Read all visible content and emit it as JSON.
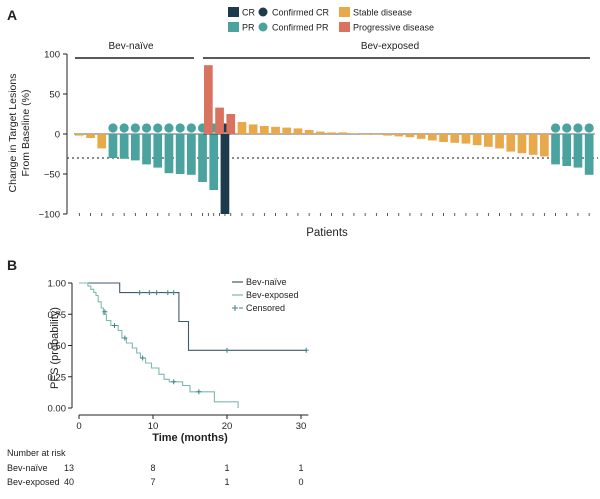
{
  "panels": {
    "a_label": "A",
    "b_label": "B"
  },
  "colors": {
    "cr": "#1d3b4d",
    "pr": "#4aa39e",
    "confirmed_cr": "#1d3b4d",
    "confirmed_pr": "#4aa39e",
    "stable": "#e8a94a",
    "progressive": "#d9735f",
    "bev_naive_line": "#3f5a6b",
    "bev_exposed_line": "#7fb8b0",
    "censored": "#3f7f86"
  },
  "chart_data": [
    {
      "type": "bar",
      "title": "",
      "xlabel": "Patients",
      "ylabel": "Change in Target Lesions From Baseline (%)",
      "ylim": [
        -100,
        100
      ],
      "yticks": [
        "100",
        "50",
        "0",
        "−50",
        "−100"
      ],
      "ytick_values": [
        100,
        50,
        0,
        -50,
        -100
      ],
      "threshold": -30,
      "legend": [
        {
          "key": "cr",
          "label": "CR",
          "marker": "square"
        },
        {
          "key": "confirmed_cr",
          "label": "Confirmed CR",
          "marker": "circle"
        },
        {
          "key": "stable",
          "label": "Stable disease",
          "marker": "square"
        },
        {
          "key": "pr",
          "label": "PR",
          "marker": "square"
        },
        {
          "key": "confirmed_pr",
          "label": "Confirmed PR",
          "marker": "circle"
        },
        {
          "key": "progressive",
          "label": "Progressive disease",
          "marker": "square"
        }
      ],
      "groups": [
        {
          "name": "Bev-naïve",
          "bars": [
            {
              "value": -2,
              "response": "stable",
              "confirmed": false
            },
            {
              "value": -5,
              "response": "stable",
              "confirmed": false
            },
            {
              "value": -18,
              "response": "stable",
              "confirmed": false
            },
            {
              "value": -30,
              "response": "pr",
              "confirmed": true
            },
            {
              "value": -31,
              "response": "pr",
              "confirmed": true
            },
            {
              "value": -33,
              "response": "pr",
              "confirmed": true
            },
            {
              "value": -38,
              "response": "pr",
              "confirmed": true
            },
            {
              "value": -42,
              "response": "pr",
              "confirmed": true
            },
            {
              "value": -49,
              "response": "pr",
              "confirmed": true
            },
            {
              "value": -50,
              "response": "pr",
              "confirmed": true
            },
            {
              "value": -51,
              "response": "pr",
              "confirmed": true
            },
            {
              "value": -60,
              "response": "pr",
              "confirmed": true
            },
            {
              "value": -70,
              "response": "pr",
              "confirmed": true
            },
            {
              "value": -100,
              "response": "cr",
              "confirmed": true
            }
          ]
        },
        {
          "name": "Bev-exposed",
          "bars": [
            {
              "value": 86,
              "response": "progressive",
              "confirmed": false
            },
            {
              "value": 33,
              "response": "progressive",
              "confirmed": false
            },
            {
              "value": 25,
              "response": "progressive",
              "confirmed": false
            },
            {
              "value": 15,
              "response": "stable",
              "confirmed": false
            },
            {
              "value": 12,
              "response": "stable",
              "confirmed": false
            },
            {
              "value": 10,
              "response": "stable",
              "confirmed": false
            },
            {
              "value": 9,
              "response": "stable",
              "confirmed": false
            },
            {
              "value": 8,
              "response": "stable",
              "confirmed": false
            },
            {
              "value": 7,
              "response": "stable",
              "confirmed": false
            },
            {
              "value": 5,
              "response": "stable",
              "confirmed": false
            },
            {
              "value": 3,
              "response": "stable",
              "confirmed": false
            },
            {
              "value": 2,
              "response": "stable",
              "confirmed": false
            },
            {
              "value": 2,
              "response": "stable",
              "confirmed": false
            },
            {
              "value": 1,
              "response": "stable",
              "confirmed": false
            },
            {
              "value": -1,
              "response": "stable",
              "confirmed": false
            },
            {
              "value": -1,
              "response": "stable",
              "confirmed": false
            },
            {
              "value": -2,
              "response": "stable",
              "confirmed": false
            },
            {
              "value": -3,
              "response": "stable",
              "confirmed": false
            },
            {
              "value": -4,
              "response": "stable",
              "confirmed": false
            },
            {
              "value": -6,
              "response": "stable",
              "confirmed": false
            },
            {
              "value": -8,
              "response": "stable",
              "confirmed": false
            },
            {
              "value": -10,
              "response": "stable",
              "confirmed": false
            },
            {
              "value": -11,
              "response": "stable",
              "confirmed": false
            },
            {
              "value": -12,
              "response": "stable",
              "confirmed": false
            },
            {
              "value": -14,
              "response": "stable",
              "confirmed": false
            },
            {
              "value": -16,
              "response": "stable",
              "confirmed": false
            },
            {
              "value": -18,
              "response": "stable",
              "confirmed": false
            },
            {
              "value": -22,
              "response": "stable",
              "confirmed": false
            },
            {
              "value": -24,
              "response": "stable",
              "confirmed": false
            },
            {
              "value": -26,
              "response": "stable",
              "confirmed": false
            },
            {
              "value": -28,
              "response": "stable",
              "confirmed": false
            },
            {
              "value": -38,
              "response": "pr",
              "confirmed": true
            },
            {
              "value": -40,
              "response": "pr",
              "confirmed": true
            },
            {
              "value": -42,
              "response": "pr",
              "confirmed": true
            },
            {
              "value": -51,
              "response": "pr",
              "confirmed": true
            }
          ]
        }
      ]
    },
    {
      "type": "line",
      "title": "",
      "xlabel": "Time (months)",
      "ylabel": "PFS (probability)",
      "xlim": [
        0,
        31
      ],
      "ylim": [
        0,
        1
      ],
      "xticks": [
        "0",
        "10",
        "20",
        "30"
      ],
      "xtick_values": [
        0,
        10,
        20,
        30
      ],
      "yticks": [
        "1.00",
        "0.75",
        "0.50",
        "0.25",
        "0.00"
      ],
      "ytick_values": [
        1.0,
        0.75,
        0.5,
        0.25,
        0.0
      ],
      "legend": [
        {
          "key": "bev_naive_line",
          "label": "Bev-naïve",
          "marker": "line"
        },
        {
          "key": "bev_exposed_line",
          "label": "Bev-exposed",
          "marker": "line"
        },
        {
          "key": "censored",
          "label": "Censored",
          "marker": "plus"
        }
      ],
      "series": [
        {
          "name": "Bev-naïve",
          "steps": [
            [
              0,
              1.0
            ],
            [
              5.5,
              1.0
            ],
            [
              5.5,
              0.923
            ],
            [
              13.5,
              0.923
            ],
            [
              13.5,
              0.692
            ],
            [
              14.8,
              0.692
            ],
            [
              14.8,
              0.462
            ],
            [
              30.7,
              0.462
            ]
          ],
          "censored": [
            [
              8.2,
              0.923
            ],
            [
              9.5,
              0.923
            ],
            [
              10.5,
              0.923
            ],
            [
              12,
              0.923
            ],
            [
              12.8,
              0.923
            ],
            [
              20,
              0.462
            ],
            [
              30.7,
              0.462
            ]
          ]
        },
        {
          "name": "Bev-exposed",
          "steps": [
            [
              0,
              1.0
            ],
            [
              1.2,
              1.0
            ],
            [
              1.2,
              0.975
            ],
            [
              1.6,
              0.975
            ],
            [
              1.6,
              0.95
            ],
            [
              2.0,
              0.95
            ],
            [
              2.0,
              0.925
            ],
            [
              2.3,
              0.925
            ],
            [
              2.3,
              0.9
            ],
            [
              2.6,
              0.9
            ],
            [
              2.6,
              0.85
            ],
            [
              3.0,
              0.85
            ],
            [
              3.0,
              0.8
            ],
            [
              3.3,
              0.8
            ],
            [
              3.3,
              0.75
            ],
            [
              3.7,
              0.75
            ],
            [
              3.7,
              0.7
            ],
            [
              4.3,
              0.7
            ],
            [
              4.3,
              0.66
            ],
            [
              5.3,
              0.66
            ],
            [
              5.3,
              0.62
            ],
            [
              5.8,
              0.62
            ],
            [
              5.8,
              0.56
            ],
            [
              6.4,
              0.56
            ],
            [
              6.4,
              0.52
            ],
            [
              7.2,
              0.52
            ],
            [
              7.2,
              0.48
            ],
            [
              7.8,
              0.48
            ],
            [
              7.8,
              0.44
            ],
            [
              8.3,
              0.44
            ],
            [
              8.3,
              0.4
            ],
            [
              9.0,
              0.4
            ],
            [
              9.0,
              0.36
            ],
            [
              9.8,
              0.36
            ],
            [
              9.8,
              0.32
            ],
            [
              10.8,
              0.32
            ],
            [
              10.8,
              0.27
            ],
            [
              11.5,
              0.27
            ],
            [
              11.5,
              0.23
            ],
            [
              12.2,
              0.23
            ],
            [
              12.2,
              0.21
            ],
            [
              14.0,
              0.21
            ],
            [
              14.0,
              0.18
            ],
            [
              15.0,
              0.18
            ],
            [
              15.0,
              0.13
            ],
            [
              18.3,
              0.13
            ],
            [
              18.3,
              0.05
            ],
            [
              21.5,
              0.05
            ],
            [
              21.5,
              0.0
            ]
          ],
          "censored": [
            [
              3.5,
              0.77
            ],
            [
              4.8,
              0.66
            ],
            [
              6.2,
              0.56
            ],
            [
              8.6,
              0.4
            ],
            [
              12.8,
              0.21
            ],
            [
              16.2,
              0.13
            ]
          ]
        }
      ]
    }
  ],
  "risk_table": {
    "title": "Number at risk",
    "rows": [
      {
        "label": "Bev-naïve",
        "values": [
          "13",
          "8",
          "1",
          "1"
        ]
      },
      {
        "label": "Bev-exposed",
        "values": [
          "40",
          "7",
          "1",
          "0"
        ]
      }
    ]
  }
}
